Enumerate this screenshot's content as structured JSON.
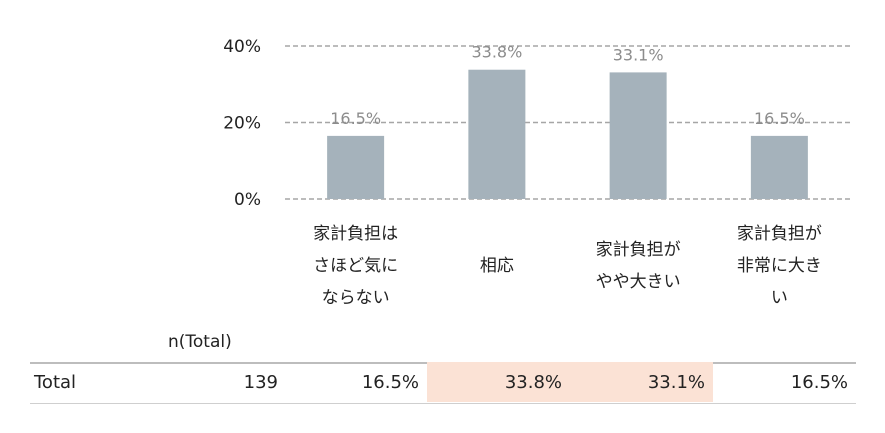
{
  "chart_data": {
    "type": "bar",
    "categories": [
      "家計負担は\nさほど気に\nならない",
      "相応",
      "家計負担が\nやや大きい",
      "家計負担が\n非常に大き\nい"
    ],
    "values": [
      16.5,
      33.8,
      33.1,
      16.5
    ],
    "value_labels": [
      "16.5%",
      "33.8%",
      "33.1%",
      "16.5%"
    ],
    "y_ticks": [
      {
        "value": 0,
        "label": "0%"
      },
      {
        "value": 20,
        "label": "20%"
      },
      {
        "value": 40,
        "label": "40%"
      }
    ],
    "ylim": [
      0,
      40
    ],
    "grid": true,
    "bar_color": "#a5b2bb",
    "grid_color": "#a6a6a6"
  },
  "table": {
    "n_header": "n(Total)",
    "row_label": "Total",
    "n_value": "139",
    "cells": [
      "16.5%",
      "33.8%",
      "33.1%",
      "16.5%"
    ],
    "highlight_color": "#fbe2d5",
    "highlighted": [
      false,
      true,
      true,
      false
    ]
  }
}
